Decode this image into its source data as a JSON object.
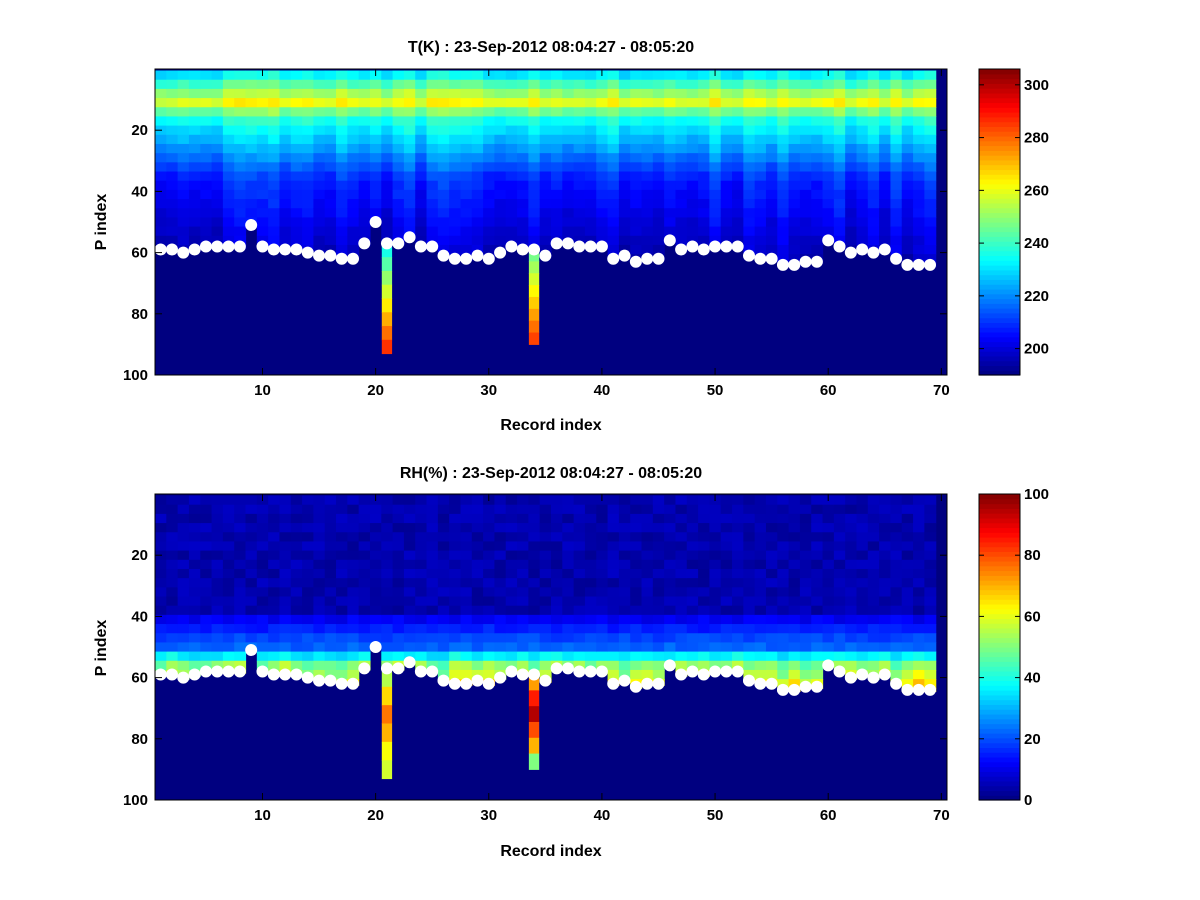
{
  "chart_data": [
    {
      "type": "heatmap",
      "title": "T(K) : 23-Sep-2012 08:04:27 - 08:05:20",
      "xlabel": "Record index",
      "ylabel": "P index",
      "xlim": [
        0.5,
        70.5
      ],
      "ylim": [
        0,
        100
      ],
      "y_reversed": true,
      "xticks": [
        "10",
        "20",
        "30",
        "40",
        "50",
        "60",
        "70"
      ],
      "yticks": [
        "20",
        "40",
        "60",
        "80",
        "100"
      ],
      "colormap": "jet",
      "color_range": [
        190,
        306
      ],
      "colorbar_ticks": [
        "200",
        "220",
        "240",
        "260",
        "280",
        "300"
      ],
      "fill_value": 190,
      "anomaly_columns": [
        {
          "record": 21,
          "p_start": 57,
          "p_end": 93,
          "value_start": 236,
          "value_end": 286
        },
        {
          "record": 34,
          "p_start": 59,
          "p_end": 90,
          "value_start": 247,
          "value_end": 284
        }
      ],
      "marker_series": {
        "name": "",
        "color": "#ffffff",
        "record": [
          1,
          2,
          3,
          4,
          5,
          6,
          7,
          8,
          9,
          10,
          11,
          12,
          13,
          14,
          15,
          16,
          17,
          18,
          19,
          20,
          21,
          22,
          23,
          24,
          25,
          26,
          27,
          28,
          29,
          30,
          31,
          32,
          33,
          34,
          35,
          36,
          37,
          38,
          39,
          40,
          41,
          42,
          43,
          44,
          45,
          46,
          47,
          48,
          49,
          50,
          51,
          52,
          53,
          54,
          55,
          56,
          57,
          58,
          59,
          60,
          61,
          62,
          63,
          64,
          65,
          66,
          67,
          68,
          69
        ],
        "p_index": [
          59,
          59,
          60,
          59,
          58,
          58,
          58,
          58,
          51,
          58,
          59,
          59,
          59,
          60,
          61,
          61,
          62,
          62,
          57,
          50,
          57,
          57,
          55,
          58,
          58,
          61,
          62,
          62,
          61,
          62,
          60,
          58,
          59,
          59,
          61,
          57,
          57,
          58,
          58,
          58,
          62,
          61,
          63,
          62,
          62,
          56,
          59,
          58,
          59,
          58,
          58,
          58,
          61,
          62,
          62,
          64,
          64,
          63,
          63,
          56,
          58,
          60,
          59,
          60,
          59,
          62,
          64,
          64,
          64
        ]
      }
    },
    {
      "type": "heatmap",
      "title": "RH(%) : 23-Sep-2012 08:04:27 - 08:05:20",
      "xlabel": "Record index",
      "ylabel": "P index",
      "xlim": [
        0.5,
        70.5
      ],
      "ylim": [
        0,
        100
      ],
      "y_reversed": true,
      "xticks": [
        "10",
        "20",
        "30",
        "40",
        "50",
        "60",
        "70"
      ],
      "yticks": [
        "20",
        "40",
        "60",
        "80",
        "100"
      ],
      "colormap": "jet",
      "color_range": [
        0,
        100
      ],
      "colorbar_ticks": [
        "0",
        "20",
        "40",
        "60",
        "80",
        "100"
      ],
      "fill_value": 0,
      "anomaly_columns": [
        {
          "record": 21,
          "p_start": 57,
          "p_end": 93,
          "values": [
            55,
            66,
            76,
            70,
            62,
            58
          ]
        },
        {
          "record": 34,
          "p_start": 59,
          "p_end": 90,
          "values": [
            72,
            85,
            95,
            80,
            70,
            50
          ]
        }
      ],
      "marker_series": {
        "name": "",
        "color": "#ffffff",
        "record": [
          1,
          2,
          3,
          4,
          5,
          6,
          7,
          8,
          9,
          10,
          11,
          12,
          13,
          14,
          15,
          16,
          17,
          18,
          19,
          20,
          21,
          22,
          23,
          24,
          25,
          26,
          27,
          28,
          29,
          30,
          31,
          32,
          33,
          34,
          35,
          36,
          37,
          38,
          39,
          40,
          41,
          42,
          43,
          44,
          45,
          46,
          47,
          48,
          49,
          50,
          51,
          52,
          53,
          54,
          55,
          56,
          57,
          58,
          59,
          60,
          61,
          62,
          63,
          64,
          65,
          66,
          67,
          68,
          69
        ],
        "p_index": [
          59,
          59,
          60,
          59,
          58,
          58,
          58,
          58,
          51,
          58,
          59,
          59,
          59,
          60,
          61,
          61,
          62,
          62,
          57,
          50,
          57,
          57,
          55,
          58,
          58,
          61,
          62,
          62,
          61,
          62,
          60,
          58,
          59,
          59,
          61,
          57,
          57,
          58,
          58,
          58,
          62,
          61,
          63,
          62,
          62,
          56,
          59,
          58,
          59,
          58,
          58,
          58,
          61,
          62,
          62,
          64,
          64,
          63,
          63,
          56,
          58,
          60,
          59,
          60,
          59,
          62,
          64,
          64,
          64
        ]
      }
    }
  ]
}
